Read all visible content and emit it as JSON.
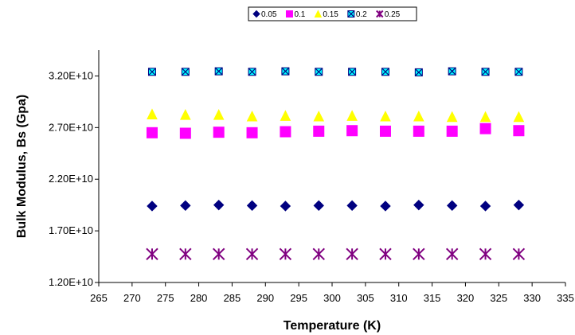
{
  "chart_data": {
    "type": "scatter",
    "title": "",
    "xlabel": "Temperature (K)",
    "ylabel": "Bulk Modulus, Bs (Gpa)",
    "xlim": [
      265,
      335
    ],
    "ylim": [
      12000000000.0,
      34500000000.0
    ],
    "x_ticks": [
      "265",
      "270",
      "275",
      "280",
      "285",
      "290",
      "295",
      "300",
      "305",
      "310",
      "315",
      "320",
      "325",
      "330",
      "335"
    ],
    "y_ticks": [
      "1.20E+10",
      "1.70E+10",
      "2.20E+10",
      "2.70E+10",
      "3.20E+10"
    ],
    "grid": false,
    "legend": "top",
    "x": [
      273,
      278,
      283,
      288,
      293,
      298,
      303,
      308,
      313,
      318,
      323,
      328
    ],
    "series": [
      {
        "name": "0.05",
        "color": "#000080",
        "marker": "diamond",
        "values": [
          19400000000.0,
          19450000000.0,
          19500000000.0,
          19450000000.0,
          19400000000.0,
          19450000000.0,
          19450000000.0,
          19400000000.0,
          19500000000.0,
          19450000000.0,
          19400000000.0,
          19500000000.0
        ]
      },
      {
        "name": "0.1",
        "color": "#ff00ff",
        "marker": "square",
        "values": [
          26500000000.0,
          26450000000.0,
          26550000000.0,
          26500000000.0,
          26600000000.0,
          26650000000.0,
          26700000000.0,
          26650000000.0,
          26650000000.0,
          26650000000.0,
          26900000000.0,
          26700000000.0
        ]
      },
      {
        "name": "0.15",
        "color": "#ffff00",
        "marker": "triangle",
        "values": [
          28300000000.0,
          28250000000.0,
          28250000000.0,
          28100000000.0,
          28150000000.0,
          28100000000.0,
          28150000000.0,
          28100000000.0,
          28100000000.0,
          28050000000.0,
          28050000000.0,
          28050000000.0
        ]
      },
      {
        "name": "0.2",
        "color": "#00ffff",
        "marker": "boxx",
        "values": [
          32400000000.0,
          32400000000.0,
          32450000000.0,
          32400000000.0,
          32450000000.0,
          32400000000.0,
          32400000000.0,
          32400000000.0,
          32350000000.0,
          32450000000.0,
          32400000000.0,
          32400000000.0
        ]
      },
      {
        "name": "0.25",
        "color": "#800080",
        "marker": "asterisk",
        "values": [
          14750000000.0,
          14750000000.0,
          14750000000.0,
          14750000000.0,
          14750000000.0,
          14750000000.0,
          14750000000.0,
          14750000000.0,
          14750000000.0,
          14750000000.0,
          14750000000.0,
          14750000000.0
        ]
      }
    ]
  }
}
